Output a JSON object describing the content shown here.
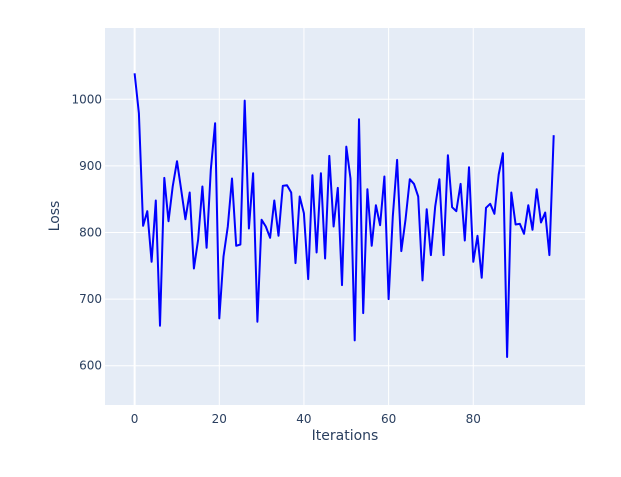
{
  "chart_data": {
    "type": "line",
    "title": "",
    "xlabel": "Iterations",
    "ylabel": "Loss",
    "xlim": [
      -7,
      106.4
    ],
    "ylim": [
      541,
      1107
    ],
    "xticks": [
      0,
      20,
      40,
      60,
      80
    ],
    "yticks": [
      600,
      700,
      800,
      900,
      1000
    ],
    "grid": true,
    "legend": "none",
    "colors": {
      "background": "#E5ECF6",
      "grid": "#FFFFFF",
      "line": "#0000FF",
      "text": "#2a3f5f"
    },
    "series": [
      {
        "x": [
          0,
          1,
          2,
          3,
          4,
          5,
          6,
          7,
          8,
          9,
          10,
          11,
          12,
          13,
          14,
          15,
          16,
          17,
          18,
          19,
          20,
          21,
          22,
          23,
          24,
          25,
          26,
          27,
          28,
          29,
          30,
          31,
          32,
          33,
          34,
          35,
          36,
          37,
          38,
          39,
          40,
          41,
          42,
          43,
          44,
          45,
          46,
          47,
          48,
          49,
          50,
          51,
          52,
          53,
          54,
          55,
          56,
          57,
          58,
          59,
          60,
          61,
          62,
          63,
          64,
          65,
          66,
          67,
          68,
          69,
          70,
          71,
          72,
          73,
          74,
          75,
          76,
          77,
          78,
          79,
          80,
          81,
          82,
          83,
          84,
          85,
          86,
          87,
          88,
          89,
          90,
          91,
          92,
          93,
          94,
          95,
          96,
          97,
          98,
          99
        ],
        "values": [
          1039,
          979,
          810,
          832,
          756,
          848,
          660,
          882,
          817,
          869,
          907,
          864,
          820,
          860,
          746,
          789,
          869,
          777,
          894,
          964,
          671,
          764,
          809,
          881,
          780,
          782,
          998,
          806,
          889,
          666,
          819,
          809,
          792,
          848,
          795,
          870,
          871,
          860,
          754,
          854,
          829,
          730,
          886,
          770,
          889,
          761,
          915,
          809,
          867,
          721,
          929,
          881,
          638,
          970,
          679,
          865,
          780,
          841,
          811,
          884,
          700,
          824,
          909,
          772,
          819,
          880,
          873,
          854,
          728,
          835,
          766,
          839,
          880,
          766,
          916,
          838,
          832,
          873,
          788,
          898,
          756,
          795,
          732,
          837,
          843,
          828,
          887,
          919,
          613,
          860,
          812,
          813,
          798,
          841,
          804,
          865,
          815,
          830,
          766,
          946
        ]
      }
    ]
  }
}
